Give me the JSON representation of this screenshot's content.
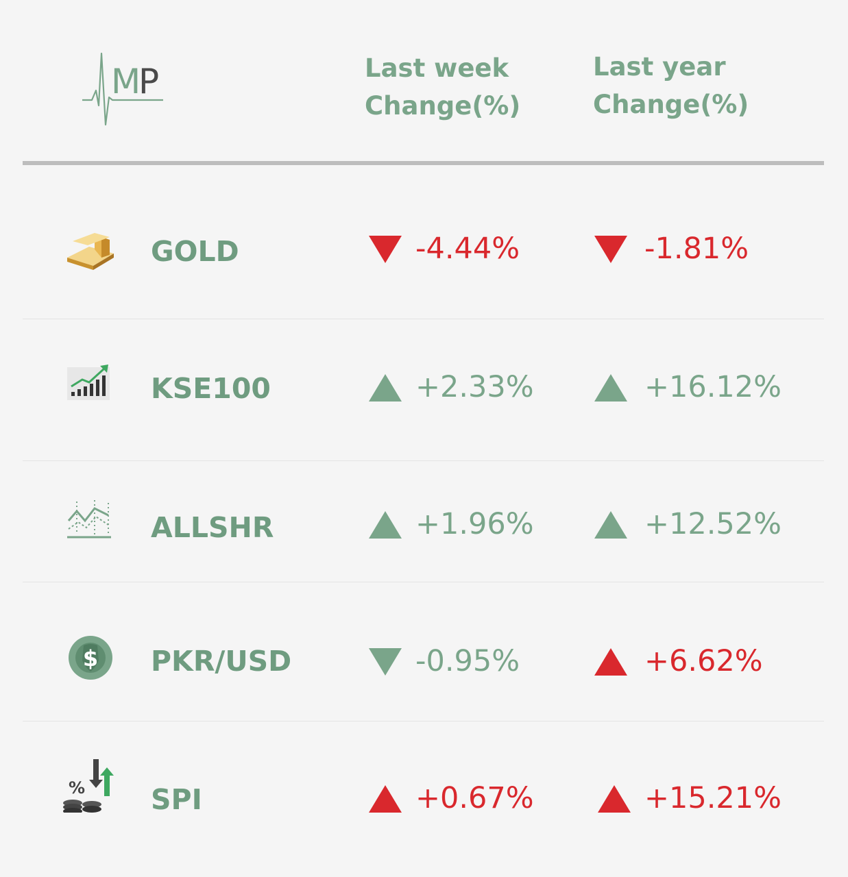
{
  "colors": {
    "accent_green": "#7aa58a",
    "negative_red": "#d9282d",
    "background": "#f5f5f5",
    "rule_gray": "#bdbdbd"
  },
  "logo": {
    "letters": "MP",
    "icon": "heartbeat-logo-icon"
  },
  "header": {
    "last_week_line1": "Last week",
    "last_week_line2": "Change(%)",
    "last_year_line1": "Last year",
    "last_year_line2": "Change(%)"
  },
  "rows": [
    {
      "name": "GOLD",
      "icon": "gold-bars-icon",
      "week": {
        "value": "-4.44%",
        "direction": "down",
        "color": "red"
      },
      "year": {
        "value": "-1.81%",
        "direction": "down",
        "color": "red"
      }
    },
    {
      "name": "KSE100",
      "icon": "bar-chart-growth-icon",
      "week": {
        "value": "+2.33%",
        "direction": "up",
        "color": "green"
      },
      "year": {
        "value": "+16.12%",
        "direction": "up",
        "color": "green"
      }
    },
    {
      "name": "ALLSHR",
      "icon": "line-chart-icon",
      "week": {
        "value": "+1.96%",
        "direction": "up",
        "color": "green"
      },
      "year": {
        "value": "+12.52%",
        "direction": "up",
        "color": "green"
      }
    },
    {
      "name": "PKR/USD",
      "icon": "dollar-coin-icon",
      "week": {
        "value": "-0.95%",
        "direction": "down",
        "color": "green"
      },
      "year": {
        "value": "+6.62%",
        "direction": "up",
        "color": "red"
      }
    },
    {
      "name": "SPI",
      "icon": "percent-coins-icon",
      "week": {
        "value": "+0.67%",
        "direction": "up",
        "color": "red"
      },
      "year": {
        "value": "+15.21%",
        "direction": "up",
        "color": "red"
      }
    }
  ]
}
